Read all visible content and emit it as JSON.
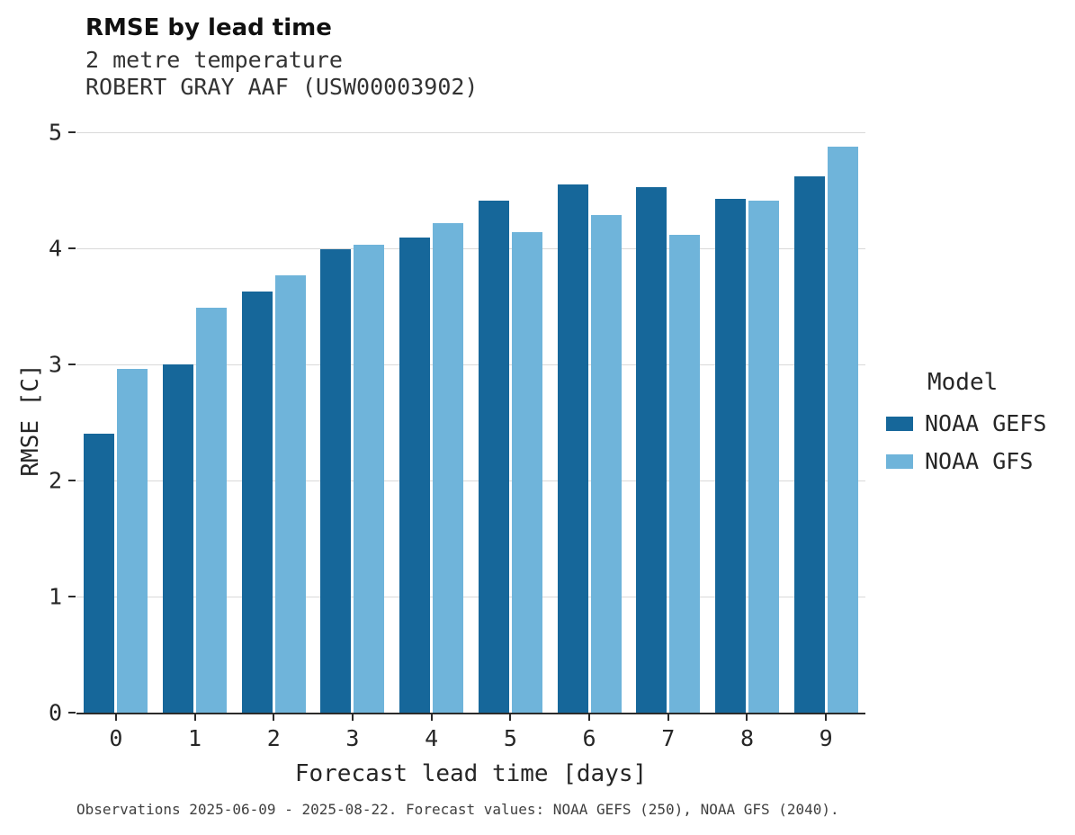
{
  "header": {
    "title": "RMSE by lead time",
    "subtitle1": "2 metre temperature",
    "subtitle2": "ROBERT GRAY AAF (USW00003902)"
  },
  "legend": {
    "title": "Model",
    "entries": [
      "NOAA GEFS",
      "NOAA GFS"
    ]
  },
  "footer": {
    "caption": "Observations 2025-06-09 - 2025-08-22. Forecast values: NOAA GEFS (250), NOAA GFS (2040)."
  },
  "colors": {
    "gefs": "#16679a",
    "gfs": "#6fb4da",
    "gridline": "#d9d9d9",
    "axis": "#2b2b2b"
  },
  "chart_data": {
    "type": "bar",
    "title": "RMSE by lead time",
    "subtitle": "2 metre temperature — ROBERT GRAY AAF (USW00003902)",
    "xlabel": "Forecast lead time [days]",
    "ylabel": "RMSE [C]",
    "categories": [
      "0",
      "1",
      "2",
      "3",
      "4",
      "5",
      "6",
      "7",
      "8",
      "9"
    ],
    "series": [
      {
        "name": "NOAA GEFS",
        "color": "#16679a",
        "values": [
          2.4,
          3.0,
          3.63,
          3.99,
          4.09,
          4.41,
          4.55,
          4.53,
          4.43,
          4.62
        ]
      },
      {
        "name": "NOAA GFS",
        "color": "#6fb4da",
        "values": [
          2.96,
          3.49,
          3.77,
          4.03,
          4.22,
          4.14,
          4.29,
          4.12,
          4.41,
          4.88
        ]
      }
    ],
    "ylim": [
      0,
      5
    ],
    "yticks": [
      0,
      1,
      2,
      3,
      4,
      5
    ],
    "grid": true,
    "legend_title": "Model",
    "legend_position": "right"
  }
}
